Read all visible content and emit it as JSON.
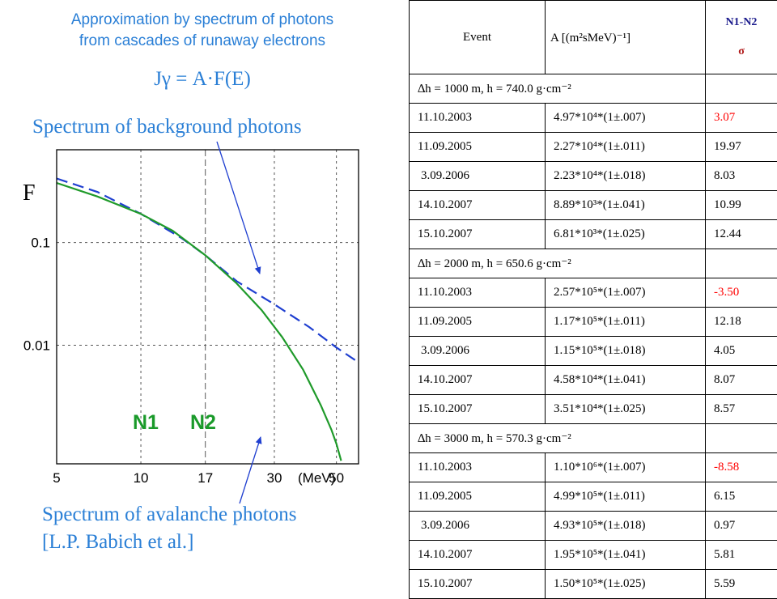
{
  "left": {
    "title_line1": "Approximation by spectrum of photons",
    "title_line2": "from cascades of runaway electrons",
    "formula": "Jγ = A·F(E)",
    "background_label": "Spectrum of background photons",
    "avalanche_label_line1": "Spectrum of avalanche photons",
    "avalanche_label_line2": "[L.P. Babich et al.]",
    "title_color": "#2a7fd6"
  },
  "chart_data": {
    "type": "line",
    "ylabel": "F",
    "xunit": "(MeV)",
    "x_scale": "log",
    "y_scale": "log",
    "xlim": [
      5,
      60
    ],
    "ylim": [
      0.0007,
      0.8
    ],
    "x_ticks": [
      5,
      10,
      17,
      30,
      50
    ],
    "y_ticks": [
      0.1,
      0.01
    ],
    "region_labels": [
      "N1",
      "N2"
    ],
    "grid": true,
    "series": [
      {
        "style": "dashed",
        "color": "#1f3fd0",
        "x": [
          5,
          7,
          10,
          14,
          17,
          22,
          30,
          40,
          50,
          60
        ],
        "y": [
          0.42,
          0.31,
          0.19,
          0.11,
          0.075,
          0.042,
          0.025,
          0.015,
          0.0095,
          0.0068
        ]
      },
      {
        "style": "solid",
        "color": "#1f9a2a",
        "x": [
          5,
          7,
          10,
          13,
          17,
          22,
          27,
          32,
          38,
          44,
          48,
          50,
          52
        ],
        "y": [
          0.38,
          0.28,
          0.19,
          0.13,
          0.075,
          0.04,
          0.022,
          0.012,
          0.0058,
          0.0026,
          0.0015,
          0.0011,
          0.00075
        ]
      }
    ]
  },
  "table": {
    "header": {
      "event": "Event",
      "a": "A [(m²sMeV)⁻¹]",
      "n": "N1-N2",
      "sigma": "σ"
    },
    "groups": [
      {
        "title": "∆h = 1000 m, h = 740.0 g·cm⁻²",
        "rows": [
          {
            "event": "11.10.2003",
            "a": "4.97*10⁴*(1±.007)",
            "n": "3.07",
            "red": true
          },
          {
            "event": "11.09.2005",
            "a": "2.27*10⁴*(1±.011)",
            "n": "19.97",
            "red": false
          },
          {
            "event": "3.09.2006",
            "a": "2.23*10⁴*(1±.018)",
            "n": "8.03",
            "red": false
          },
          {
            "event": "14.10.2007",
            "a": "8.89*10³*(1±.041)",
            "n": "10.99",
            "red": false
          },
          {
            "event": "15.10.2007",
            "a": "6.81*10³*(1±.025)",
            "n": "12.44",
            "red": false
          }
        ]
      },
      {
        "title": "∆h = 2000 m, h = 650.6 g·cm⁻²",
        "rows": [
          {
            "event": "11.10.2003",
            "a": "2.57*10⁵*(1±.007)",
            "n": "-3.50",
            "red": true
          },
          {
            "event": "11.09.2005",
            "a": "1.17*10⁵*(1±.011)",
            "n": "12.18",
            "red": false
          },
          {
            "event": "3.09.2006",
            "a": "1.15*10⁵*(1±.018)",
            "n": "4.05",
            "red": false
          },
          {
            "event": "14.10.2007",
            "a": "4.58*10⁴*(1±.041)",
            "n": "8.07",
            "red": false
          },
          {
            "event": "15.10.2007",
            "a": "3.51*10⁴*(1±.025)",
            "n": "8.57",
            "red": false
          }
        ]
      },
      {
        "title": "∆h = 3000 m, h = 570.3 g·cm⁻²",
        "rows": [
          {
            "event": "11.10.2003",
            "a": "1.10*10⁶*(1±.007)",
            "n": "-8.58",
            "red": true
          },
          {
            "event": "11.09.2005",
            "a": "4.99*10⁵*(1±.011)",
            "n": "6.15",
            "red": false
          },
          {
            "event": "3.09.2006",
            "a": "4.93*10⁵*(1±.018)",
            "n": "0.97",
            "red": false
          },
          {
            "event": "14.10.2007",
            "a": "1.95*10⁵*(1±.041)",
            "n": "5.81",
            "red": false
          },
          {
            "event": "15.10.2007",
            "a": "1.50*10⁵*(1±.025)",
            "n": "5.59",
            "red": false
          }
        ]
      }
    ]
  }
}
